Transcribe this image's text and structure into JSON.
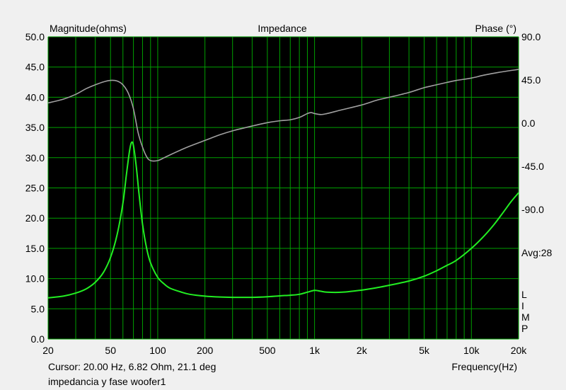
{
  "chart_data": {
    "type": "line",
    "title": "Impedance",
    "left_axis_label": "Magnitude(ohms)",
    "right_axis_label": "Phase (°)",
    "xlabel": "Frequency(Hz)",
    "x_scale": "log",
    "xlim": [
      20,
      20000
    ],
    "ylim_left": [
      0,
      50
    ],
    "ylim_right": [
      -225,
      90
    ],
    "x_ticks": [
      {
        "value": 20,
        "label": "20"
      },
      {
        "value": 50,
        "label": "50"
      },
      {
        "value": 100,
        "label": "100"
      },
      {
        "value": 200,
        "label": "200"
      },
      {
        "value": 500,
        "label": "500"
      },
      {
        "value": 1000,
        "label": "1k"
      },
      {
        "value": 2000,
        "label": "2k"
      },
      {
        "value": 5000,
        "label": "5k"
      },
      {
        "value": 10000,
        "label": "10k"
      },
      {
        "value": 20000,
        "label": "20k"
      }
    ],
    "y_ticks_left": [
      {
        "value": 0,
        "label": "0.0"
      },
      {
        "value": 5,
        "label": "5.0"
      },
      {
        "value": 10,
        "label": "10.0"
      },
      {
        "value": 15,
        "label": "15.0"
      },
      {
        "value": 20,
        "label": "20.0"
      },
      {
        "value": 25,
        "label": "25.0"
      },
      {
        "value": 30,
        "label": "30.0"
      },
      {
        "value": 35,
        "label": "35.0"
      },
      {
        "value": 40,
        "label": "40.0"
      },
      {
        "value": 45,
        "label": "45.0"
      },
      {
        "value": 50,
        "label": "50.0"
      }
    ],
    "y_ticks_right": [
      {
        "value": 90,
        "label": "90.0"
      },
      {
        "value": 45,
        "label": "45.0"
      },
      {
        "value": 0,
        "label": "0.0"
      },
      {
        "value": -45,
        "label": "-45.0"
      },
      {
        "value": -90,
        "label": "-90.0"
      }
    ],
    "avg_label": {
      "value": -135,
      "label": "Avg:28"
    },
    "side_legend": [
      "L",
      "I",
      "M",
      "P"
    ],
    "grid": true,
    "colors": {
      "background": "#000000",
      "grid": "#00a000",
      "magnitude": "#22ee22",
      "phase": "#a0a0a0"
    },
    "series": [
      {
        "key": "magnitude",
        "axis": "left",
        "x": [
          20,
          25,
          30,
          35,
          40,
          45,
          50,
          55,
          60,
          63,
          66,
          68,
          70,
          73,
          76,
          80,
          85,
          90,
          100,
          110,
          120,
          140,
          160,
          200,
          250,
          300,
          400,
          500,
          600,
          700,
          800,
          900,
          1000,
          1100,
          1200,
          1500,
          2000,
          2500,
          3000,
          4000,
          5000,
          6000,
          7000,
          8000,
          10000,
          12000,
          14000,
          16000,
          18000,
          20000
        ],
        "y": [
          6.82,
          7.1,
          7.6,
          8.3,
          9.4,
          11.0,
          13.5,
          17.2,
          22.5,
          27.0,
          31.0,
          32.5,
          32.0,
          28.5,
          24.0,
          19.0,
          15.0,
          12.6,
          10.2,
          9.1,
          8.4,
          7.8,
          7.4,
          7.1,
          6.95,
          6.9,
          6.9,
          7.0,
          7.15,
          7.25,
          7.4,
          7.75,
          8.05,
          7.9,
          7.75,
          7.75,
          8.1,
          8.5,
          8.9,
          9.6,
          10.4,
          11.3,
          12.2,
          13.0,
          15.0,
          17.0,
          19.0,
          21.0,
          22.8,
          24.2
        ]
      },
      {
        "key": "phase",
        "axis": "right",
        "x": [
          20,
          25,
          30,
          35,
          40,
          45,
          50,
          55,
          60,
          65,
          70,
          75,
          80,
          85,
          90,
          100,
          110,
          120,
          140,
          160,
          200,
          250,
          300,
          400,
          500,
          600,
          700,
          800,
          900,
          950,
          1000,
          1100,
          1200,
          1500,
          2000,
          2500,
          3000,
          4000,
          5000,
          6000,
          7000,
          8000,
          10000,
          12000,
          15000,
          20000
        ],
        "y": [
          21.1,
          25.0,
          30.0,
          36.0,
          40.0,
          43.0,
          44.6,
          44.0,
          40.0,
          31.0,
          15.0,
          -10.0,
          -25.0,
          -35.0,
          -39.0,
          -39.0,
          -36.0,
          -33.0,
          -28.0,
          -24.0,
          -18.0,
          -12.0,
          -8.0,
          -3.0,
          0.5,
          2.5,
          3.5,
          6.0,
          10.0,
          11.0,
          10.0,
          9.0,
          10.0,
          14.0,
          19.0,
          24.0,
          27.0,
          32.0,
          37.0,
          40.0,
          42.5,
          44.5,
          47.0,
          50.0,
          53.0,
          56.0
        ]
      }
    ]
  },
  "status": {
    "cursor": "Cursor: 20.00 Hz, 6.82 Ohm, 21.1 deg",
    "caption": "impedancia y fase woofer1"
  }
}
